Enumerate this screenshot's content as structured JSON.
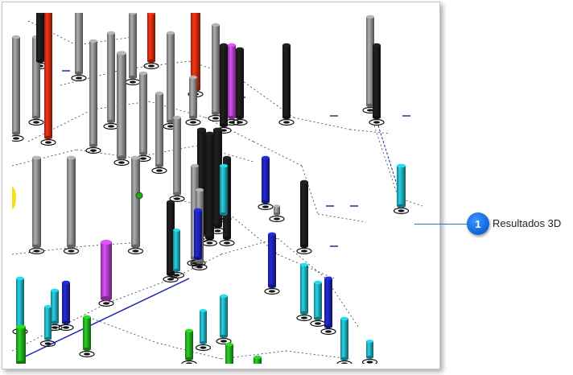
{
  "callout": {
    "number": "1",
    "label": "Resultados 3D"
  },
  "colors": {
    "gray": "#8c8c8c",
    "red": "#cc2a10",
    "black": "#1a1a1a",
    "magenta": "#b23fc8",
    "cyan": "#1fa9b8",
    "blue": "#1a22b0",
    "green": "#22a81e",
    "callout_accent": "#1a74d9"
  }
}
